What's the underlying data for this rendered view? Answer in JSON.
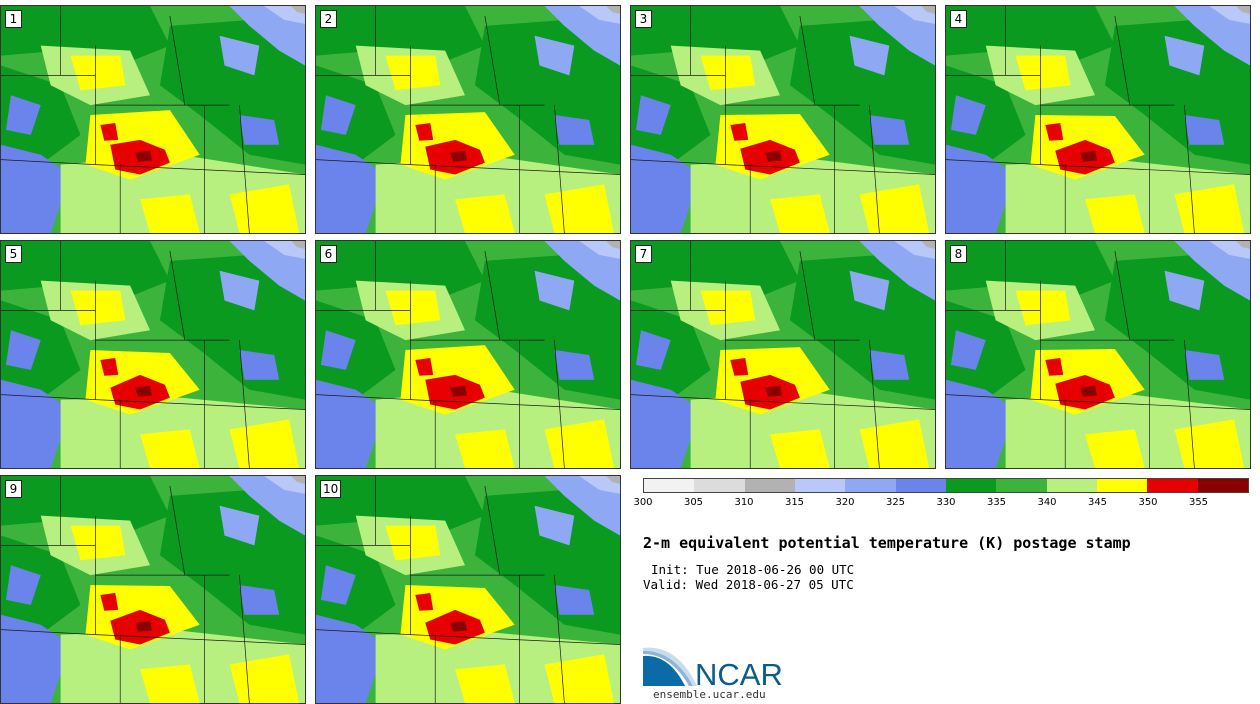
{
  "panels": [
    {
      "label": "1"
    },
    {
      "label": "2"
    },
    {
      "label": "3"
    },
    {
      "label": "4"
    },
    {
      "label": "5"
    },
    {
      "label": "6"
    },
    {
      "label": "7"
    },
    {
      "label": "8"
    },
    {
      "label": "9"
    },
    {
      "label": "10"
    }
  ],
  "colorbar": {
    "ticks": [
      "300",
      "305",
      "310",
      "315",
      "320",
      "325",
      "330",
      "335",
      "340",
      "345",
      "350",
      "355"
    ],
    "colors": [
      "#f2f2f2",
      "#dcdcdc",
      "#b2b2b2",
      "#b8c8f8",
      "#8ea8f4",
      "#6a84ec",
      "#0a9a20",
      "#3cb43c",
      "#b8f080",
      "#ffff00",
      "#e60000",
      "#8a0000"
    ],
    "lower": 300,
    "upper": 360
  },
  "title": "2-m equivalent potential temperature (K) postage stamp",
  "init": "Init: Tue 2018-06-26 00 UTC",
  "valid": "Valid: Wed 2018-06-27 05 UTC",
  "logo": {
    "text": "NCAR",
    "color": "#0b5c8a"
  },
  "site": "ensemble.ucar.edu"
}
